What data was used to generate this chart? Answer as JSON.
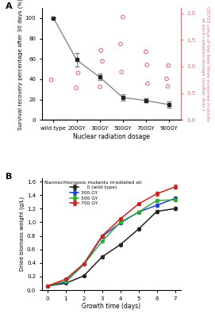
{
  "panel_A": {
    "categories": [
      "wild type",
      "200GY",
      "300GY",
      "500GY",
      "700GY",
      "900GY"
    ],
    "survival_mean": [
      100,
      59,
      42,
      22,
      19,
      15
    ],
    "survival_err": [
      0,
      7,
      3,
      3,
      2,
      3
    ],
    "scatter_x_indices": [
      0,
      1,
      1,
      2,
      2,
      2,
      3,
      3,
      3,
      4,
      4,
      4,
      5,
      5,
      5
    ],
    "scatter_y_od": [
      0.75,
      0.88,
      0.6,
      1.3,
      1.1,
      0.62,
      1.93,
      1.42,
      0.9,
      1.28,
      1.03,
      0.68,
      1.02,
      0.77,
      0.63
    ],
    "left_ylabel": "Survival recovery percentage after 30 days (%)",
    "right_ylabel": "OD750 value of the best three screened mutants\nat each radiation dosage (scatter dots )",
    "xlabel": "Nuclear radiation dosage",
    "ylim_left": [
      0,
      110
    ],
    "ylim_right": [
      0.0,
      2.1
    ],
    "yticks_left": [
      0,
      20,
      40,
      60,
      80,
      100
    ],
    "yticks_right": [
      0.0,
      0.5,
      1.0,
      1.5,
      2.0
    ],
    "line_color": "#888888",
    "scatter_color": "#e07070",
    "marker_facecolor": "#222222",
    "marker_edgecolor": "#222222"
  },
  "panel_B": {
    "days": [
      0,
      1,
      2,
      3,
      4,
      5,
      6,
      7
    ],
    "wild_type": [
      0.06,
      0.1,
      0.21,
      0.49,
      0.67,
      0.9,
      1.16,
      1.2
    ],
    "gy300": [
      0.06,
      0.12,
      0.38,
      0.79,
      0.99,
      1.15,
      1.25,
      1.35
    ],
    "gy500": [
      0.06,
      0.13,
      0.38,
      0.72,
      1.0,
      1.15,
      1.32,
      1.33
    ],
    "gy700": [
      0.06,
      0.16,
      0.39,
      0.8,
      1.05,
      1.27,
      1.42,
      1.52
    ],
    "wild_type_err": [
      0.003,
      0.005,
      0.01,
      0.018,
      0.018,
      0.018,
      0.025,
      0.025
    ],
    "gy300_err": [
      0.003,
      0.005,
      0.01,
      0.018,
      0.018,
      0.018,
      0.018,
      0.025
    ],
    "gy500_err": [
      0.003,
      0.005,
      0.01,
      0.018,
      0.018,
      0.018,
      0.025,
      0.025
    ],
    "gy700_err": [
      0.003,
      0.005,
      0.01,
      0.018,
      0.018,
      0.018,
      0.025,
      0.03
    ],
    "colors": [
      "#222222",
      "#2244cc",
      "#33aa33",
      "#cc2222"
    ],
    "labels": [
      "    0 (wild type)",
      "300 GY",
      "500 GY",
      "700 GY"
    ],
    "xlabel": "Growth time (days)",
    "ylabel": "Dried biomass weight (g/L)",
    "ylim": [
      0.0,
      1.65
    ],
    "yticks": [
      0.0,
      0.2,
      0.4,
      0.6,
      0.8,
      1.0,
      1.2,
      1.4,
      1.6
    ],
    "legend_title": "Nannochloropsis mutants irradiated at:"
  }
}
